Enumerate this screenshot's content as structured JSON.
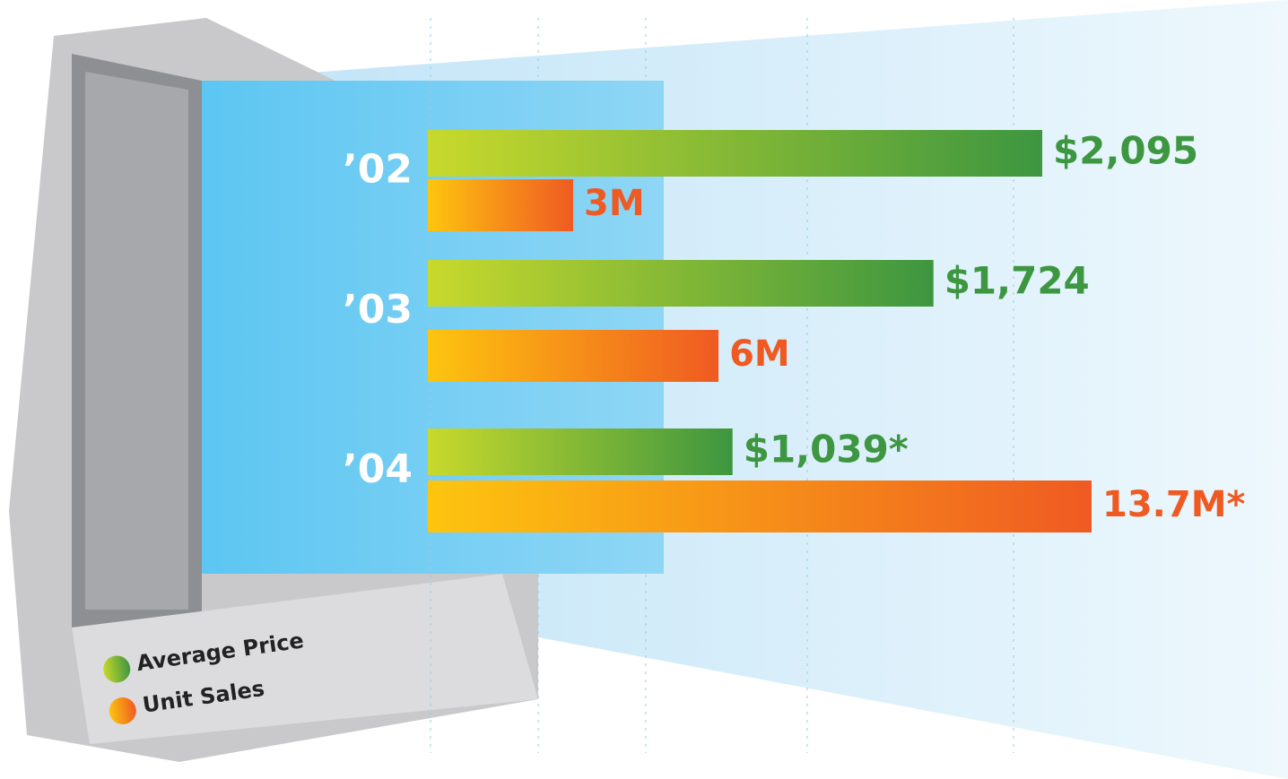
{
  "chart_data": {
    "type": "bar",
    "categories": [
      "’02",
      "’03",
      "’04"
    ],
    "series": [
      {
        "name": "Average Price",
        "color": "#3d9640",
        "values": [
          2095,
          1724,
          1039
        ],
        "value_labels": [
          "$2,095",
          "$1,724",
          "$1,039*"
        ]
      },
      {
        "name": "Unit Sales",
        "color": "#ef5a22",
        "values": [
          3,
          6,
          13.7
        ],
        "value_labels": [
          "3M",
          "6M",
          "13.7M*"
        ]
      }
    ]
  }
}
